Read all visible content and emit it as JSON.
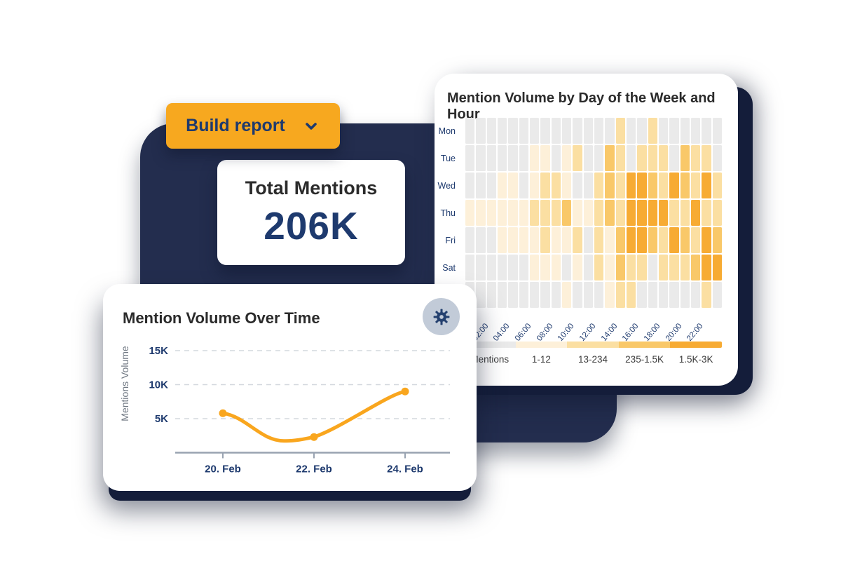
{
  "scene": {
    "background": "#FFFFFF",
    "backdrop_color": "#232D4E",
    "accent_orange": "#F7A81F",
    "navy_text": "#1E3A6E",
    "title_color": "#2B2B2B"
  },
  "build_report_button": {
    "label": "Build report"
  },
  "total_mentions_card": {
    "title": "Total Mentions",
    "value": "206K"
  },
  "chart_data": [
    {
      "id": "mention-volume-over-time",
      "type": "line",
      "title": "Mention Volume Over Time",
      "ylabel": "Mentions Volume",
      "x": [
        "20. Feb",
        "22. Feb",
        "24. Feb"
      ],
      "values": [
        5800,
        2300,
        9000
      ],
      "yticks": [
        {
          "label": "5K",
          "value": 5000
        },
        {
          "label": "10K",
          "value": 10000
        },
        {
          "label": "15K",
          "value": 15000
        }
      ],
      "ylim": [
        0,
        17000
      ],
      "grid": "horizontal-dashed",
      "line_color": "#F9A61E",
      "axis_color": "#99A3B1",
      "tick_text_color": "#1E3A6E",
      "ylabel_color": "#6E7681",
      "marker": "circle"
    },
    {
      "id": "mention-volume-heatmap",
      "type": "heatmap",
      "title": "Mention Volume by Day of the Week and Hour",
      "day_labels": [
        "Mon",
        "Tue",
        "Wed",
        "Thu",
        "Fri",
        "Sat",
        ""
      ],
      "hour_ticks": [
        "02:00",
        "04:00",
        "06:00",
        "08:00",
        "10:00",
        "12:00",
        "14:00",
        "16:00",
        "18:00",
        "20:00",
        "22:00"
      ],
      "legend": [
        {
          "label": "Mentions",
          "color": "#EAEAEA"
        },
        {
          "label": "1-12",
          "color": "#FDF0D9"
        },
        {
          "label": "13-234",
          "color": "#FBDFA2"
        },
        {
          "label": "235-1.5K",
          "color": "#F9C869"
        },
        {
          "label": "1.5K-3K",
          "color": "#F7AB33"
        }
      ],
      "matrix": [
        [
          0,
          0,
          0,
          0,
          0,
          0,
          0,
          0,
          0,
          0,
          0,
          0,
          0,
          0,
          2,
          0,
          0,
          2,
          0,
          0,
          0,
          0,
          0,
          0
        ],
        [
          0,
          0,
          0,
          0,
          0,
          0,
          1,
          1,
          0,
          1,
          2,
          0,
          0,
          3,
          2,
          0,
          2,
          2,
          2,
          0,
          3,
          2,
          2,
          0
        ],
        [
          0,
          0,
          0,
          1,
          1,
          0,
          1,
          2,
          2,
          1,
          0,
          0,
          2,
          3,
          2,
          4,
          4,
          3,
          2,
          4,
          3,
          2,
          4,
          2
        ],
        [
          1,
          1,
          1,
          1,
          1,
          1,
          2,
          2,
          2,
          3,
          1,
          1,
          2,
          3,
          2,
          4,
          4,
          4,
          4,
          2,
          2,
          4,
          2,
          2
        ],
        [
          0,
          0,
          0,
          1,
          1,
          1,
          1,
          2,
          1,
          1,
          2,
          0,
          2,
          1,
          3,
          4,
          4,
          3,
          2,
          4,
          3,
          2,
          4,
          3
        ],
        [
          0,
          0,
          0,
          0,
          0,
          0,
          1,
          1,
          1,
          0,
          1,
          0,
          2,
          1,
          3,
          2,
          2,
          0,
          2,
          2,
          2,
          3,
          4,
          4
        ],
        [
          0,
          0,
          0,
          0,
          0,
          0,
          0,
          0,
          0,
          1,
          0,
          0,
          0,
          1,
          2,
          2,
          0,
          0,
          0,
          0,
          0,
          0,
          2,
          0
        ]
      ]
    }
  ]
}
